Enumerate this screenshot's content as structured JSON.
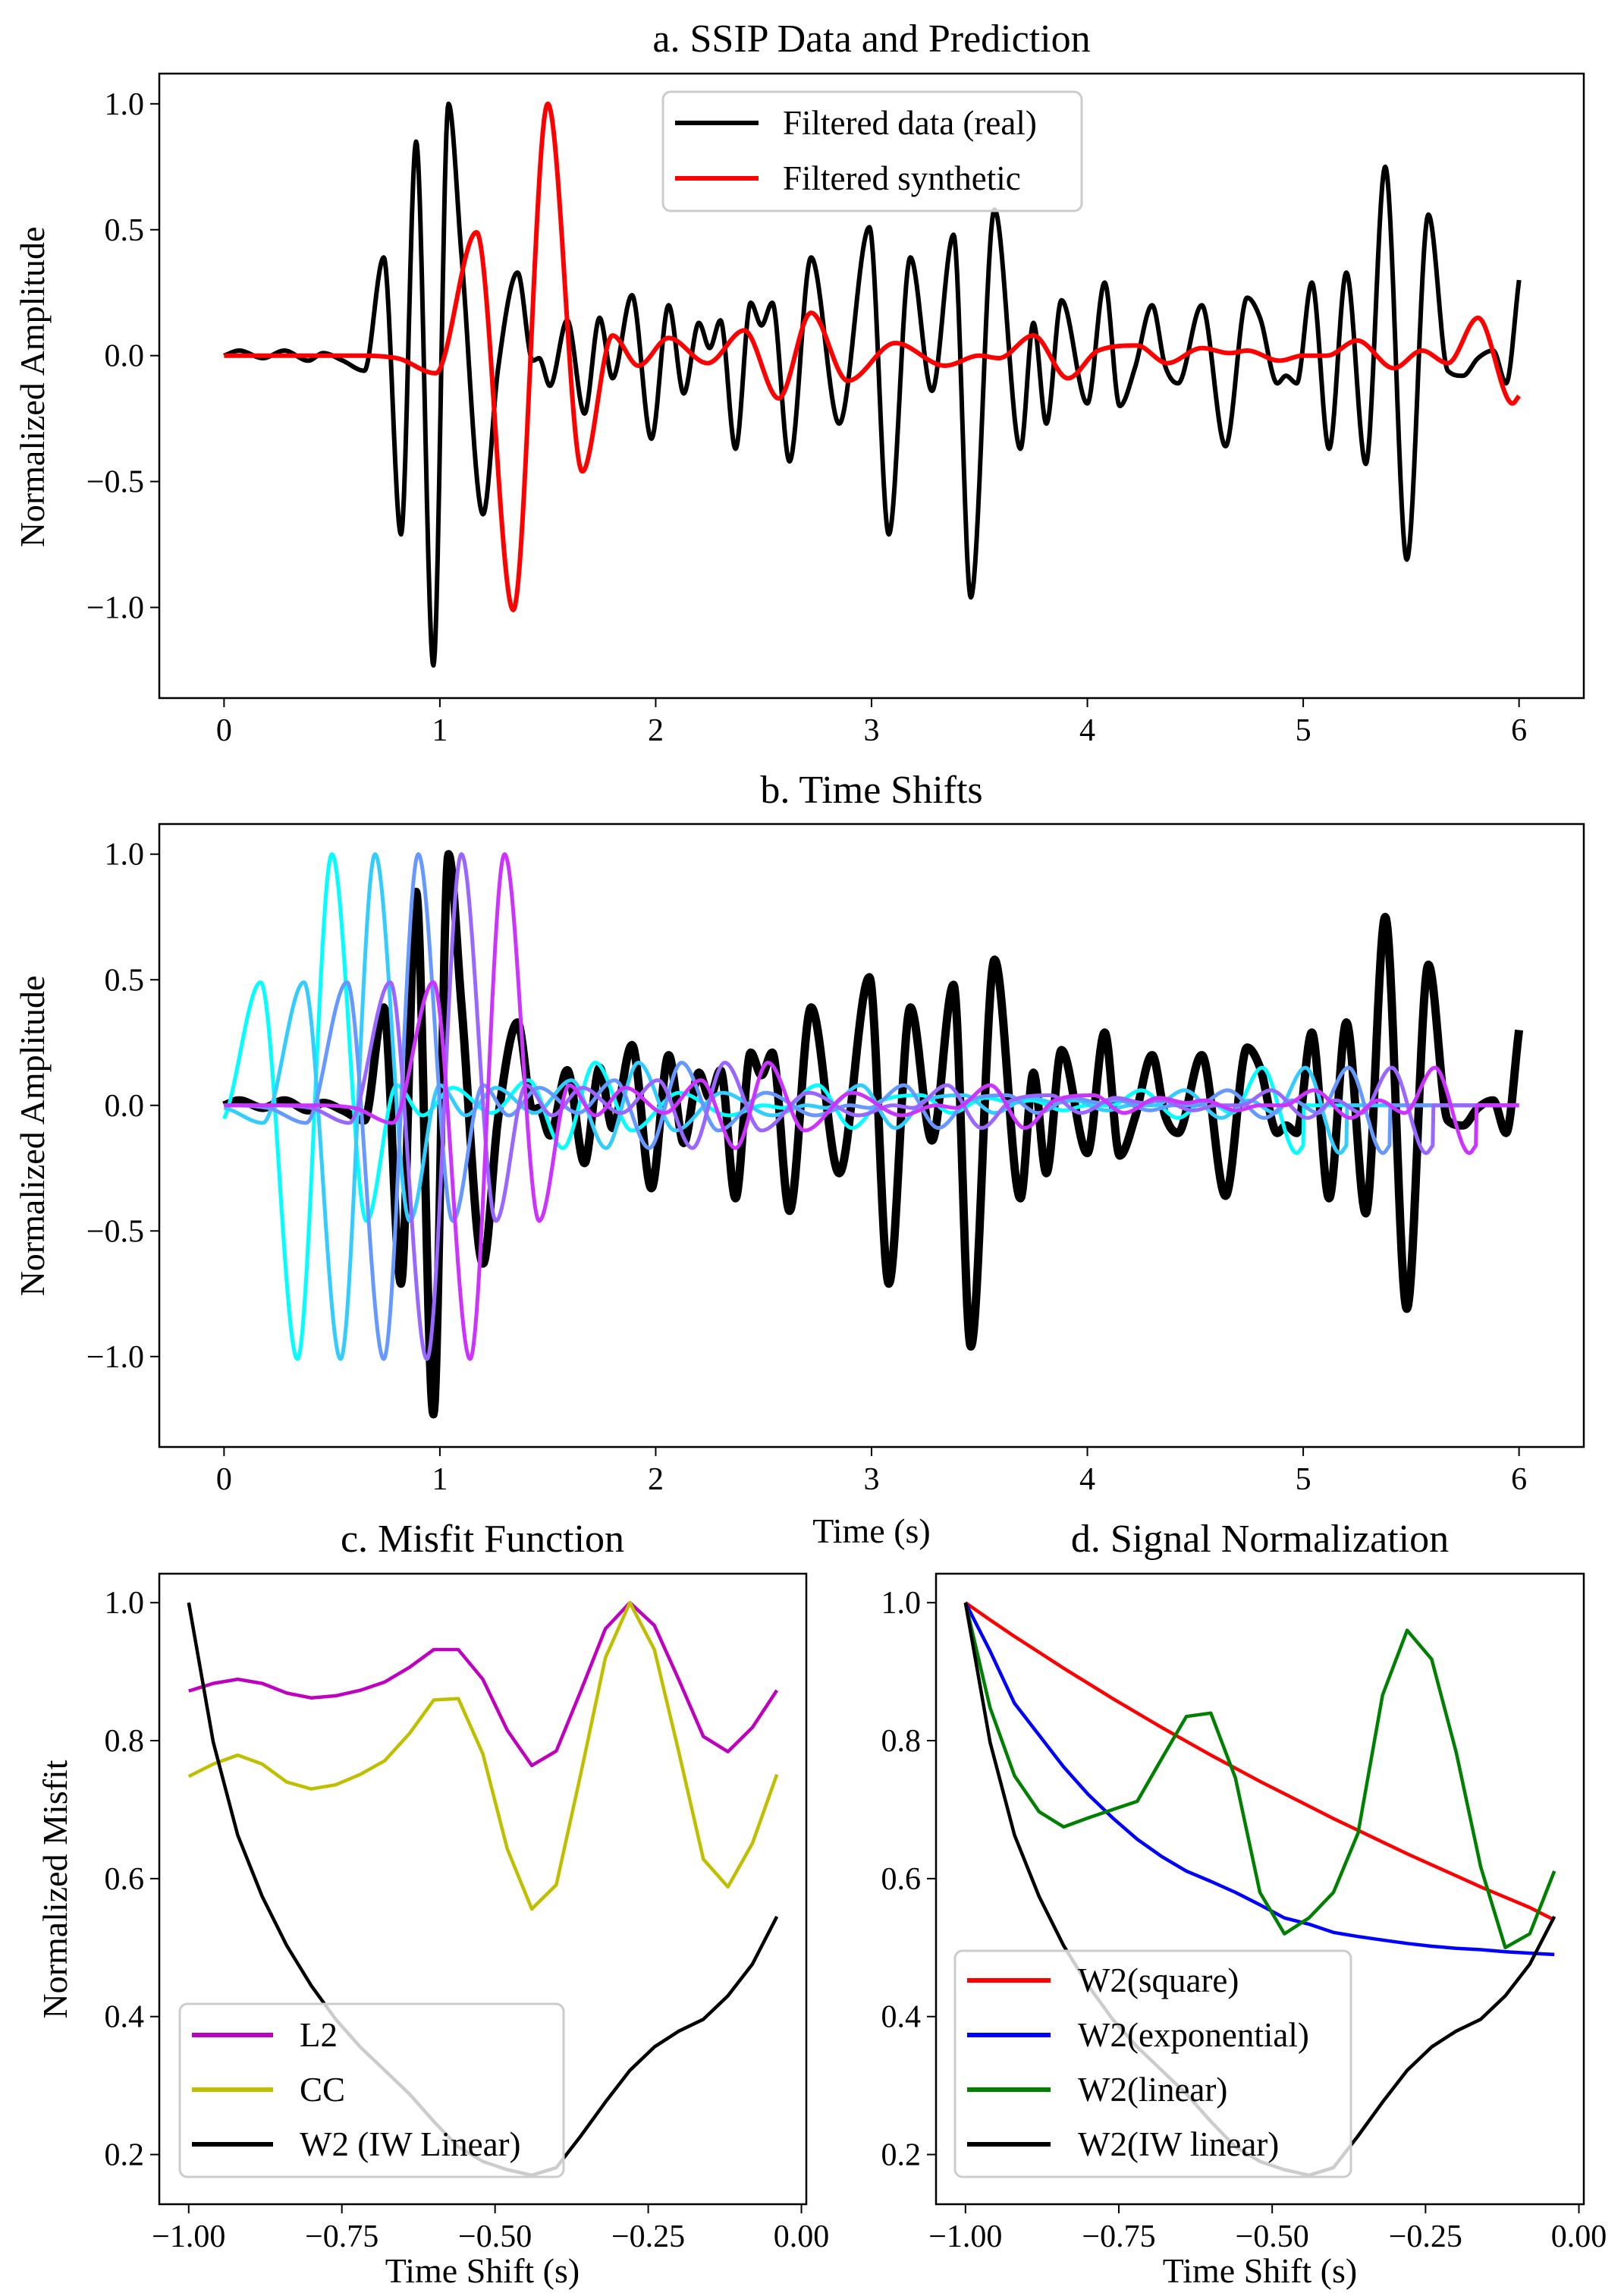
{
  "chart_data": [
    {
      "type": "line",
      "title": "a. SSIP Data and Prediction",
      "xlabel": "",
      "ylabel": "Normalized Amplitude",
      "xlim": [
        -0.3,
        6.3
      ],
      "ylim": [
        -1.36,
        1.12
      ],
      "xticks": [
        0,
        1,
        2,
        3,
        4,
        5,
        6
      ],
      "xtick_labels": [
        "0",
        "1",
        "2",
        "3",
        "4",
        "5",
        "6"
      ],
      "yticks": [
        1.0,
        0.5,
        0.0,
        -0.5,
        -1.0
      ],
      "ytick_labels": [
        "1.0",
        "0.5",
        "0.0",
        "−0.5",
        "−1.0"
      ],
      "grid": false,
      "legend_position": "top-center",
      "series": [
        {
          "name": "Filtered data (real)",
          "color": "#000000",
          "knots": [
            [
              0,
              0
            ],
            [
              0.07,
              0.02
            ],
            [
              0.18,
              -0.01
            ],
            [
              0.28,
              0.02
            ],
            [
              0.39,
              -0.02
            ],
            [
              0.46,
              0.01
            ],
            [
              0.55,
              -0.02
            ],
            [
              0.65,
              -0.06
            ],
            [
              0.74,
              0.39
            ],
            [
              0.82,
              -0.71
            ],
            [
              0.89,
              0.85
            ],
            [
              0.97,
              -1.23
            ],
            [
              1.04,
              1.0
            ],
            [
              1.1,
              0.4
            ],
            [
              1.2,
              -0.63
            ],
            [
              1.27,
              -0.05
            ],
            [
              1.36,
              0.33
            ],
            [
              1.43,
              -0.02
            ],
            [
              1.46,
              -0.01
            ],
            [
              1.51,
              -0.12
            ],
            [
              1.59,
              0.14
            ],
            [
              1.67,
              -0.23
            ],
            [
              1.74,
              0.15
            ],
            [
              1.8,
              -0.09
            ],
            [
              1.89,
              0.24
            ],
            [
              1.98,
              -0.33
            ],
            [
              2.06,
              0.2
            ],
            [
              2.13,
              -0.15
            ],
            [
              2.2,
              0.13
            ],
            [
              2.25,
              0.03
            ],
            [
              2.3,
              0.14
            ],
            [
              2.37,
              -0.37
            ],
            [
              2.44,
              0.21
            ],
            [
              2.49,
              0.12
            ],
            [
              2.54,
              0.21
            ],
            [
              2.62,
              -0.42
            ],
            [
              2.72,
              0.39
            ],
            [
              2.85,
              -0.27
            ],
            [
              2.99,
              0.51
            ],
            [
              3.08,
              -0.71
            ],
            [
              3.18,
              0.39
            ],
            [
              3.28,
              -0.14
            ],
            [
              3.38,
              0.48
            ],
            [
              3.46,
              -0.96
            ],
            [
              3.57,
              0.58
            ],
            [
              3.69,
              -0.37
            ],
            [
              3.75,
              0.13
            ],
            [
              3.81,
              -0.27
            ],
            [
              3.88,
              0.22
            ],
            [
              4.0,
              -0.19
            ],
            [
              4.08,
              0.29
            ],
            [
              4.15,
              -0.2
            ],
            [
              4.22,
              -0.05
            ],
            [
              4.3,
              0.2
            ],
            [
              4.36,
              -0.04
            ],
            [
              4.42,
              -0.11
            ],
            [
              4.53,
              0.2
            ],
            [
              4.64,
              -0.36
            ],
            [
              4.74,
              0.23
            ],
            [
              4.8,
              0.15
            ],
            [
              4.88,
              -0.11
            ],
            [
              4.92,
              -0.08
            ],
            [
              4.97,
              -0.11
            ],
            [
              5.04,
              0.29
            ],
            [
              5.12,
              -0.37
            ],
            [
              5.2,
              0.33
            ],
            [
              5.29,
              -0.43
            ],
            [
              5.38,
              0.75
            ],
            [
              5.48,
              -0.81
            ],
            [
              5.58,
              0.56
            ],
            [
              5.67,
              -0.06
            ],
            [
              5.74,
              -0.08
            ],
            [
              5.81,
              -0.01
            ],
            [
              5.88,
              0.02
            ],
            [
              5.94,
              -0.11
            ],
            [
              6.0,
              0.3
            ]
          ]
        },
        {
          "name": "Filtered synthetic",
          "color": "#ff0000",
          "knots": [
            [
              0,
              0
            ],
            [
              0.6,
              0
            ],
            [
              0.8,
              -0.01
            ],
            [
              0.98,
              -0.07
            ],
            [
              1.17,
              0.49
            ],
            [
              1.34,
              -1.01
            ],
            [
              1.5,
              1.0
            ],
            [
              1.66,
              -0.46
            ],
            [
              1.8,
              0.08
            ],
            [
              1.92,
              -0.04
            ],
            [
              2.06,
              0.07
            ],
            [
              2.24,
              -0.03
            ],
            [
              2.41,
              0.1
            ],
            [
              2.57,
              -0.17
            ],
            [
              2.72,
              0.17
            ],
            [
              2.89,
              -0.1
            ],
            [
              3.11,
              0.05
            ],
            [
              3.34,
              -0.04
            ],
            [
              3.5,
              0.0
            ],
            [
              3.59,
              -0.01
            ],
            [
              3.75,
              0.08
            ],
            [
              3.91,
              -0.09
            ],
            [
              4.05,
              0.02
            ],
            [
              4.23,
              0.04
            ],
            [
              4.37,
              -0.03
            ],
            [
              4.53,
              0.03
            ],
            [
              4.66,
              0.01
            ],
            [
              4.74,
              0.02
            ],
            [
              4.89,
              -0.02
            ],
            [
              5.0,
              0.0
            ],
            [
              5.11,
              0.0
            ],
            [
              5.25,
              0.06
            ],
            [
              5.42,
              -0.05
            ],
            [
              5.55,
              0.02
            ],
            [
              5.67,
              -0.03
            ],
            [
              5.81,
              0.15
            ],
            [
              5.97,
              -0.19
            ],
            [
              6.0,
              -0.16
            ]
          ]
        }
      ]
    },
    {
      "type": "line",
      "title": "b. Time Shifts",
      "xlabel": "Time (s)",
      "ylabel": "Normalized Amplitude",
      "xlim": [
        -0.3,
        6.3
      ],
      "ylim": [
        -1.36,
        1.12
      ],
      "xticks": [
        0,
        1,
        2,
        3,
        4,
        5,
        6
      ],
      "xtick_labels": [
        "0",
        "1",
        "2",
        "3",
        "4",
        "5",
        "6"
      ],
      "yticks": [
        1.0,
        0.5,
        0.0,
        -0.5,
        -1.0
      ],
      "ytick_labels": [
        "1.0",
        "0.5",
        "0.0",
        "−0.5",
        "−1.0"
      ],
      "grid": false,
      "shifted_synthetic": {
        "shifts_s": [
          1.0,
          0.8,
          0.6,
          0.4,
          0.2
        ],
        "colors": [
          "#00ffff",
          "#33ccff",
          "#6699ff",
          "#9966ff",
          "#cc33ff"
        ]
      },
      "data_color": "#000000"
    },
    {
      "type": "line",
      "title": "c. Misfit Function",
      "xlabel": "Time Shift (s)",
      "ylabel": "Normalized Misfit",
      "xlim": [
        -1.048,
        0.008
      ],
      "ylim": [
        0.128,
        1.042
      ],
      "xticks": [
        -1.0,
        -0.75,
        -0.5,
        -0.25,
        0.0
      ],
      "xtick_labels": [
        "−1.00",
        "−0.75",
        "−0.50",
        "−0.25",
        "0.00"
      ],
      "yticks": [
        1.0,
        0.8,
        0.6,
        0.4,
        0.2
      ],
      "ytick_labels": [
        "1.0",
        "0.8",
        "0.6",
        "0.4",
        "0.2"
      ],
      "grid": false,
      "legend_position": "lower-left",
      "x": [
        -1.0,
        -0.96,
        -0.92,
        -0.88,
        -0.84,
        -0.8,
        -0.76,
        -0.72,
        -0.68,
        -0.64,
        -0.6,
        -0.56,
        -0.52,
        -0.48,
        -0.44,
        -0.4,
        -0.36,
        -0.32,
        -0.28,
        -0.24,
        -0.2,
        -0.16,
        -0.12,
        -0.08,
        -0.04
      ],
      "series": [
        {
          "name": "L2",
          "color": "#bf00bf",
          "values": [
            0.872,
            0.883,
            0.889,
            0.883,
            0.869,
            0.862,
            0.865,
            0.873,
            0.885,
            0.906,
            0.932,
            0.932,
            0.889,
            0.815,
            0.764,
            0.785,
            0.872,
            0.962,
            1.0,
            0.967,
            0.888,
            0.806,
            0.784,
            0.819,
            0.873
          ]
        },
        {
          "name": "CC",
          "color": "#bfbf00",
          "values": [
            0.748,
            0.766,
            0.779,
            0.766,
            0.74,
            0.73,
            0.736,
            0.751,
            0.771,
            0.81,
            0.859,
            0.861,
            0.781,
            0.643,
            0.556,
            0.591,
            0.752,
            0.92,
            1.0,
            0.932,
            0.783,
            0.628,
            0.588,
            0.651,
            0.751
          ]
        },
        {
          "name": "W2 (IW Linear)",
          "color": "#000000",
          "values": [
            1.0,
            0.798,
            0.663,
            0.574,
            0.503,
            0.445,
            0.396,
            0.356,
            0.322,
            0.288,
            0.248,
            0.211,
            0.19,
            0.178,
            0.17,
            0.181,
            0.227,
            0.276,
            0.322,
            0.356,
            0.379,
            0.396,
            0.43,
            0.476,
            0.545
          ]
        }
      ]
    },
    {
      "type": "line",
      "title": "d. Signal Normalization",
      "xlabel": "Time Shift (s)",
      "ylabel": "",
      "xlim": [
        -1.048,
        0.008
      ],
      "ylim": [
        0.128,
        1.042
      ],
      "xticks": [
        -1.0,
        -0.75,
        -0.5,
        -0.25,
        0.0
      ],
      "xtick_labels": [
        "−1.00",
        "−0.75",
        "−0.50",
        "−0.25",
        "0.00"
      ],
      "yticks": [
        1.0,
        0.8,
        0.6,
        0.4,
        0.2
      ],
      "ytick_labels": [
        "1.0",
        "0.8",
        "0.6",
        "0.4",
        "0.2"
      ],
      "grid": false,
      "legend_position": "lower-left",
      "x": [
        -1.0,
        -0.96,
        -0.92,
        -0.88,
        -0.84,
        -0.8,
        -0.76,
        -0.72,
        -0.68,
        -0.64,
        -0.6,
        -0.56,
        -0.52,
        -0.48,
        -0.44,
        -0.4,
        -0.36,
        -0.32,
        -0.28,
        -0.24,
        -0.2,
        -0.16,
        -0.12,
        -0.08,
        -0.04
      ],
      "series": [
        {
          "name": "W2(square)",
          "color": "#ff0000",
          "values": [
            1.0,
            0.975,
            0.951,
            0.928,
            0.905,
            0.883,
            0.861,
            0.84,
            0.819,
            0.799,
            0.779,
            0.76,
            0.741,
            0.723,
            0.705,
            0.687,
            0.67,
            0.653,
            0.636,
            0.62,
            0.604,
            0.588,
            0.573,
            0.558,
            0.54
          ]
        },
        {
          "name": "W2(exponential)",
          "color": "#0000ff",
          "values": [
            1.0,
            0.93,
            0.854,
            0.808,
            0.762,
            0.722,
            0.688,
            0.657,
            0.632,
            0.611,
            0.596,
            0.58,
            0.562,
            0.543,
            0.534,
            0.522,
            0.516,
            0.511,
            0.506,
            0.502,
            0.499,
            0.497,
            0.494,
            0.492,
            0.49
          ]
        },
        {
          "name": "W2(linear)",
          "color": "#008000",
          "values": [
            1.0,
            0.848,
            0.749,
            0.697,
            0.675,
            0.688,
            0.7,
            0.712,
            0.774,
            0.835,
            0.84,
            0.746,
            0.58,
            0.52,
            0.543,
            0.58,
            0.666,
            0.866,
            0.96,
            0.918,
            0.783,
            0.617,
            0.5,
            0.52,
            0.611
          ]
        },
        {
          "name": "W2(IW linear)",
          "color": "#000000",
          "values": [
            1.0,
            0.798,
            0.663,
            0.574,
            0.503,
            0.445,
            0.396,
            0.356,
            0.322,
            0.288,
            0.248,
            0.211,
            0.19,
            0.178,
            0.17,
            0.181,
            0.227,
            0.276,
            0.322,
            0.356,
            0.379,
            0.396,
            0.43,
            0.476,
            0.545
          ]
        }
      ]
    }
  ]
}
